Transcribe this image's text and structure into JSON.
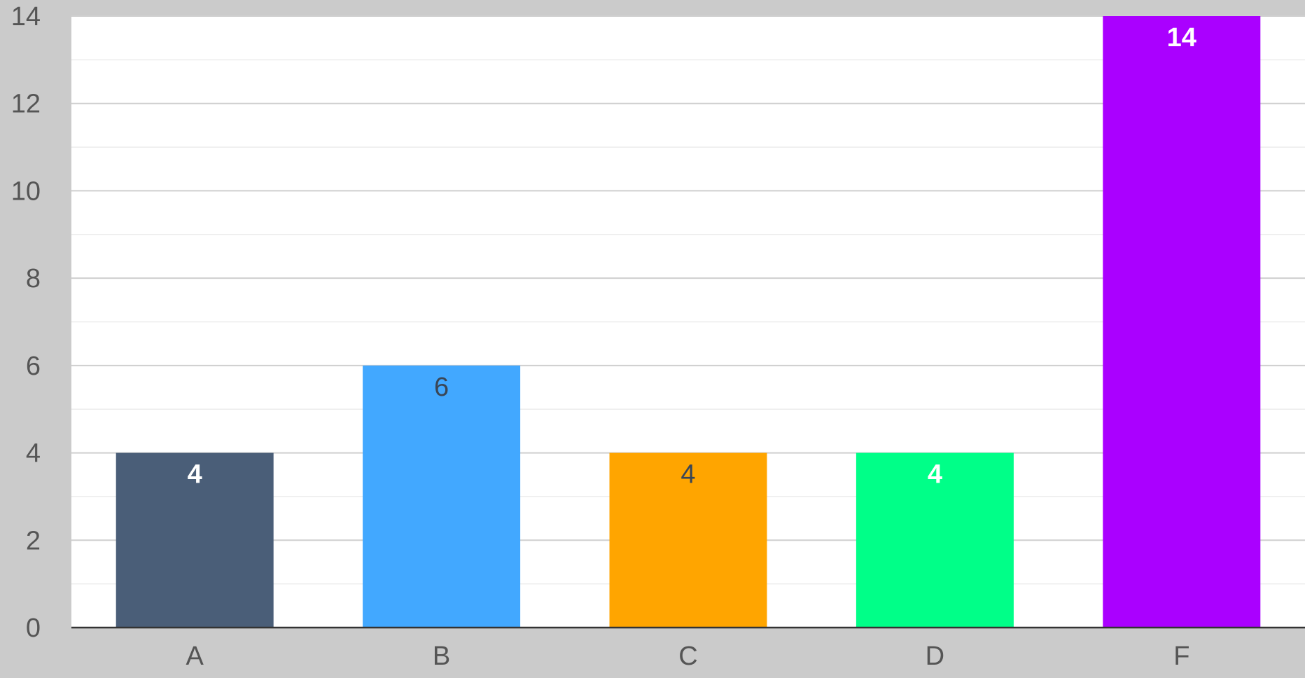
{
  "chart_data": {
    "type": "bar",
    "title": "",
    "xlabel": "",
    "ylabel": "",
    "categories": [
      "A",
      "B",
      "C",
      "D",
      "F"
    ],
    "values": [
      4,
      6,
      4,
      4,
      14
    ],
    "data_labels": [
      "4",
      "6",
      "4",
      "4",
      "14"
    ],
    "bar_colors": [
      "#4a5e78",
      "#42a8ff",
      "#ffa500",
      "#00ff88",
      "#aa00ff"
    ],
    "label_colors": [
      "#ffffff",
      "#3a4656",
      "#3a4656",
      "#ffffff",
      "#ffffff"
    ],
    "ylim": [
      0,
      14
    ],
    "yticks": [
      0,
      2,
      4,
      6,
      8,
      10,
      12,
      14
    ],
    "ytick_labels": [
      "0",
      "2",
      "4",
      "6",
      "8",
      "10",
      "12",
      "14"
    ],
    "grid": true,
    "minor_grid": true,
    "legend": "none",
    "plot_background": "#ffffff",
    "page_background": "#cbcbcb"
  }
}
